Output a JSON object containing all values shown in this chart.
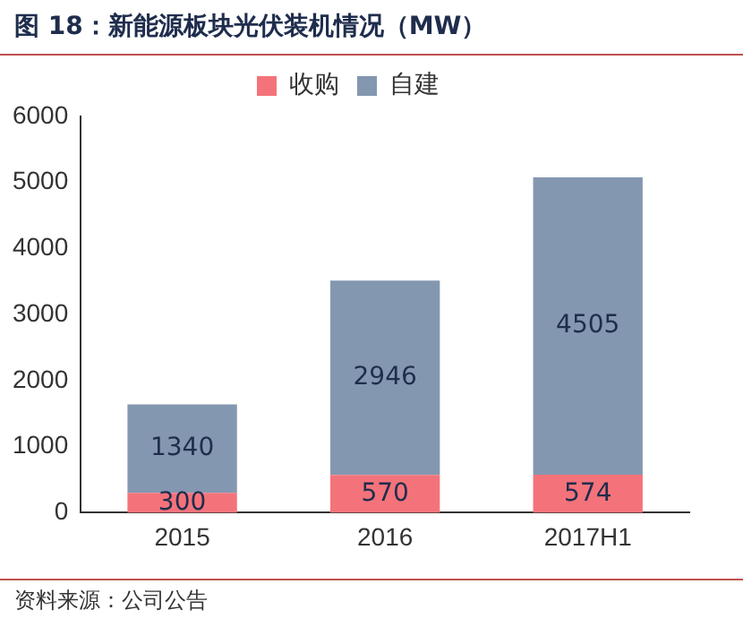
{
  "chart_data": {
    "type": "bar",
    "title": "图 18：新能源板块光伏装机情况（MW）",
    "categories": [
      "2015",
      "2016",
      "2017H1"
    ],
    "series": [
      {
        "name": "收购",
        "color": "#f4737a",
        "values": [
          300,
          570,
          574
        ]
      },
      {
        "name": "自建",
        "color": "#8497b0",
        "values": [
          1340,
          2946,
          4505
        ]
      }
    ],
    "stacked": true,
    "ylim": [
      0,
      6000
    ],
    "yticks": [
      0,
      1000,
      2000,
      3000,
      4000,
      5000,
      6000
    ],
    "grid": false,
    "legend": "top",
    "data_labels": true,
    "annotations": [
      "资料来源：公司公告"
    ]
  }
}
